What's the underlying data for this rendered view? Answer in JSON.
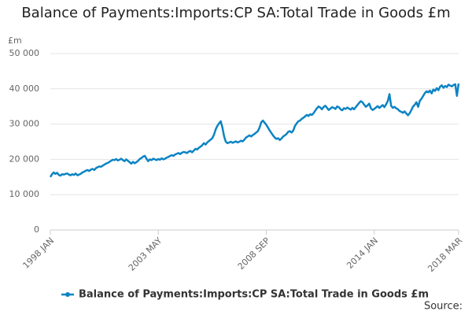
{
  "chart_data": {
    "type": "line",
    "title": "Balance of Payments:Imports:CP SA:Total Trade in Goods £m",
    "y_unit": "£m",
    "source": "Source:",
    "categories": [
      "1998 JAN",
      null,
      null,
      null,
      null,
      null,
      null,
      null,
      null,
      null,
      null,
      null,
      null,
      null,
      null,
      null,
      null,
      null,
      null,
      null,
      null,
      null,
      null,
      null,
      null,
      null,
      null,
      null,
      null,
      null,
      null,
      null,
      null,
      null,
      null,
      null,
      null,
      null,
      null,
      null,
      null,
      null,
      null,
      null,
      null,
      null,
      null,
      null,
      null,
      null,
      null,
      null,
      null,
      null,
      null,
      null,
      null,
      null,
      null,
      null,
      null,
      null,
      null,
      null,
      "2003 MAY",
      null,
      null,
      null,
      null,
      null,
      null,
      null,
      null,
      null,
      null,
      null,
      null,
      null,
      null,
      null,
      null,
      null,
      null,
      null,
      null,
      null,
      null,
      null,
      null,
      null,
      null,
      null,
      null,
      null,
      null,
      null,
      null,
      null,
      null,
      null,
      null,
      null,
      null,
      null,
      null,
      null,
      null,
      null,
      null,
      null,
      null,
      null,
      null,
      null,
      null,
      null,
      null,
      null,
      null,
      null,
      null,
      null,
      null,
      null,
      null,
      null,
      null,
      null,
      "2008 SEP",
      null,
      null,
      null,
      null,
      null,
      null,
      null,
      null,
      null,
      null,
      null,
      null,
      null,
      null,
      null,
      null,
      null,
      null,
      null,
      null,
      null,
      null,
      null,
      null,
      null,
      null,
      null,
      null,
      null,
      null,
      null,
      null,
      null,
      null,
      null,
      null,
      null,
      null,
      null,
      null,
      null,
      null,
      null,
      null,
      null,
      null,
      null,
      null,
      null,
      null,
      null,
      null,
      null,
      null,
      null,
      null,
      null,
      null,
      null,
      null,
      null,
      null,
      null,
      "2014 JAN",
      null,
      null,
      null,
      null,
      null,
      null,
      null,
      null,
      null,
      null,
      null,
      null,
      null,
      null,
      null,
      null,
      null,
      null,
      null,
      null,
      null,
      null,
      null,
      null,
      null,
      null,
      null,
      null,
      null,
      null,
      null,
      null,
      null,
      null,
      null,
      null,
      null,
      null,
      null,
      null,
      null,
      null,
      null,
      null,
      null,
      null,
      null,
      null,
      null,
      "2018 MAR"
    ],
    "series": [
      {
        "name": "Balance of Payments:Imports:CP SA:Total Trade in Goods £m",
        "color": "#0b84c4",
        "values": [
          15000,
          15800,
          16300,
          15900,
          16200,
          15600,
          15400,
          15800,
          15700,
          15900,
          16000,
          15700,
          15500,
          15800,
          15600,
          16000,
          15500,
          15700,
          15900,
          16300,
          16500,
          16800,
          17000,
          16700,
          17100,
          17300,
          17000,
          17500,
          17800,
          18000,
          17900,
          18200,
          18500,
          18800,
          19000,
          19300,
          19600,
          19900,
          19800,
          20100,
          19700,
          19900,
          20200,
          19800,
          19500,
          20000,
          19600,
          19200,
          18800,
          19300,
          18900,
          19200,
          19600,
          20100,
          20400,
          20800,
          21000,
          20200,
          19500,
          20000,
          19800,
          20200,
          20000,
          19800,
          20100,
          19900,
          20300,
          20000,
          20200,
          20500,
          20700,
          21000,
          21200,
          21000,
          21400,
          21600,
          21800,
          21500,
          21900,
          22100,
          22000,
          21800,
          22200,
          22400,
          22000,
          22500,
          23000,
          22800,
          23300,
          23600,
          24000,
          24600,
          24200,
          24800,
          25200,
          25600,
          26000,
          27000,
          28500,
          29500,
          30200,
          30800,
          29000,
          26500,
          25000,
          24600,
          24800,
          25000,
          24700,
          24900,
          25100,
          24800,
          25000,
          25300,
          25100,
          25600,
          26200,
          26500,
          26800,
          26500,
          26900,
          27200,
          27600,
          28000,
          29000,
          30500,
          31000,
          30400,
          29800,
          29000,
          28200,
          27500,
          26800,
          26200,
          25800,
          26000,
          25500,
          25900,
          26500,
          26800,
          27200,
          27800,
          28000,
          27600,
          28200,
          29500,
          30200,
          30800,
          31000,
          31500,
          31800,
          32200,
          32600,
          32300,
          32800,
          32600,
          33100,
          33800,
          34500,
          35000,
          34700,
          34200,
          34900,
          35200,
          34600,
          34000,
          34400,
          34800,
          34600,
          34300,
          35000,
          34800,
          34200,
          33900,
          34500,
          34300,
          34700,
          34400,
          34100,
          34600,
          34200,
          34800,
          35400,
          36000,
          36500,
          36200,
          35500,
          34900,
          35300,
          35800,
          34500,
          34000,
          34300,
          34700,
          35100,
          34600,
          35000,
          35400,
          34800,
          35600,
          36500,
          38500,
          35200,
          34600,
          34900,
          34500,
          34200,
          33700,
          33500,
          33200,
          33600,
          33000,
          32500,
          33100,
          34000,
          35000,
          35500,
          36200,
          34900,
          36600,
          37200,
          38000,
          38800,
          39300,
          39000,
          39500,
          38700,
          39800,
          39400,
          40200,
          39600,
          40600,
          41000,
          40300,
          40800,
          40500,
          41200,
          40900,
          40700,
          41100,
          41300,
          38000,
          41500
        ]
      }
    ],
    "ylim": [
      0,
      50000
    ],
    "yticks": [
      0,
      {
        "value": 10000,
        "label": "10 000"
      },
      {
        "value": 20000,
        "label": "20 000"
      },
      {
        "value": 30000,
        "label": "30 000"
      },
      {
        "value": 40000,
        "label": "40 000"
      },
      {
        "value": 50000,
        "label": "50 000"
      }
    ],
    "grid": true
  }
}
